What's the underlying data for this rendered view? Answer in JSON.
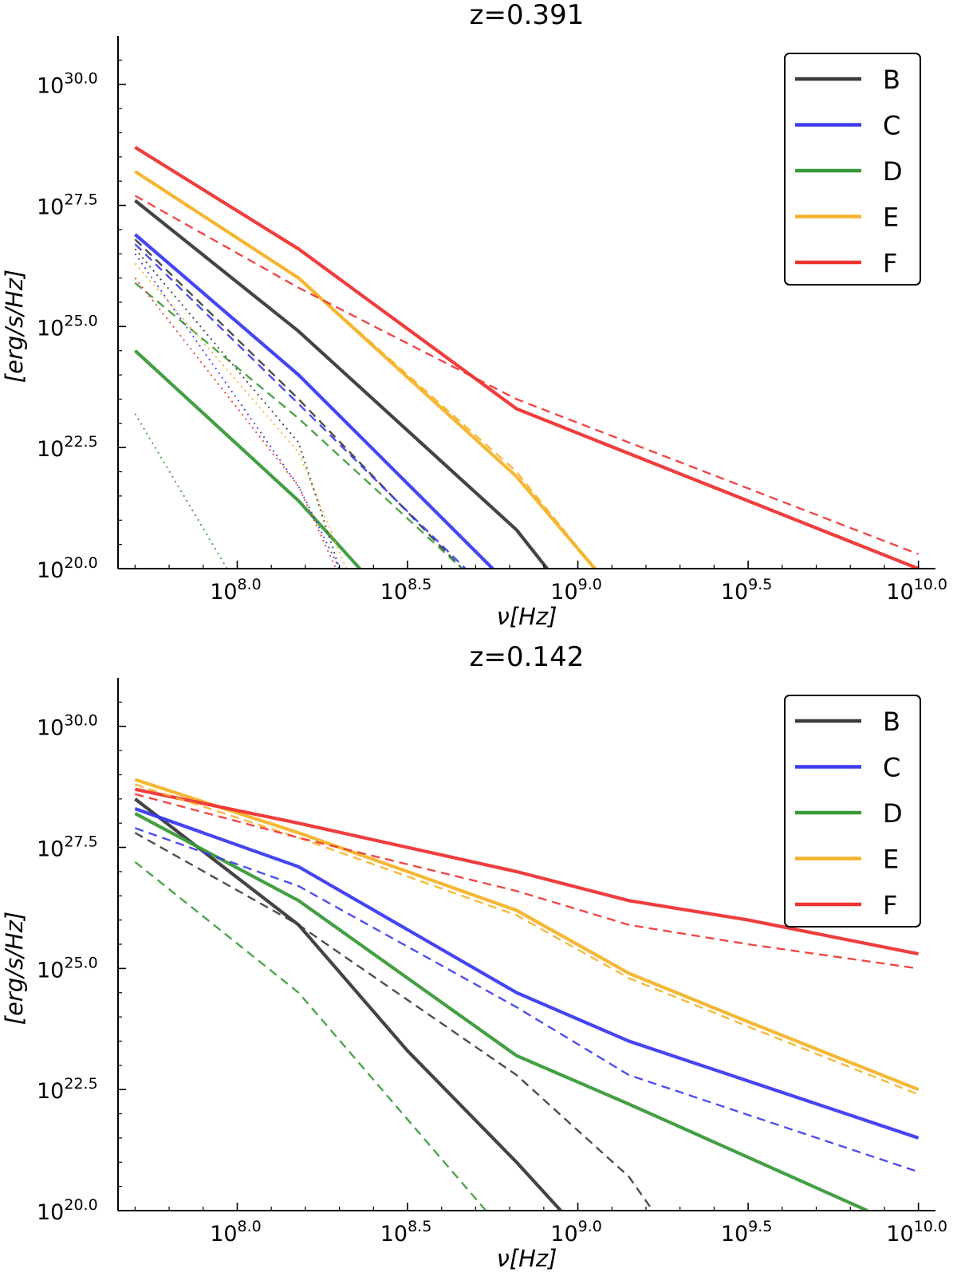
{
  "colors": {
    "B": "#3a3a3a",
    "C": "#3b3bf0",
    "D": "#3a9a3a",
    "E": "#f5b32a",
    "F": "#ee3333"
  },
  "tick_base": "10",
  "chart_data": [
    {
      "type": "line",
      "title": "z=0.391",
      "xlabel": "ν[Hz]",
      "ylabel": "[erg/s/Hz]",
      "xscale": "log",
      "yscale": "log",
      "xlim_log10": [
        7.65,
        10.05
      ],
      "ylim_log10": [
        20.0,
        31.0
      ],
      "xticks": [
        {
          "v": 8.0,
          "label": "8.0"
        },
        {
          "v": 8.5,
          "label": "8.5"
        },
        {
          "v": 9.0,
          "label": "9.0"
        },
        {
          "v": 9.5,
          "label": "9.5"
        },
        {
          "v": 10.0,
          "label": "10.0"
        }
      ],
      "yticks": [
        {
          "v": 20.0,
          "label": "20.0"
        },
        {
          "v": 22.5,
          "label": "22.5"
        },
        {
          "v": 25.0,
          "label": "25.0"
        },
        {
          "v": 27.5,
          "label": "27.5"
        },
        {
          "v": 30.0,
          "label": "30.0"
        }
      ],
      "legend": {
        "entries": [
          "B",
          "C",
          "D",
          "E",
          "F"
        ],
        "loc": "upper right"
      },
      "series": [
        {
          "name": "B",
          "style": "solid",
          "x": [
            7.7,
            8.18,
            8.82,
            8.91
          ],
          "y": [
            27.6,
            24.9,
            20.8,
            20.0
          ]
        },
        {
          "name": "C",
          "style": "solid",
          "x": [
            7.7,
            8.18,
            8.75
          ],
          "y": [
            26.9,
            24.0,
            20.0
          ]
        },
        {
          "name": "D",
          "style": "solid",
          "x": [
            7.7,
            8.18,
            8.36
          ],
          "y": [
            24.5,
            21.4,
            20.0
          ]
        },
        {
          "name": "E",
          "style": "solid",
          "x": [
            7.7,
            8.18,
            8.82,
            9.05
          ],
          "y": [
            28.2,
            26.0,
            21.9,
            20.0
          ]
        },
        {
          "name": "F",
          "style": "solid",
          "x": [
            7.7,
            8.18,
            8.82,
            10.0
          ],
          "y": [
            28.7,
            26.6,
            23.3,
            20.0
          ]
        },
        {
          "name": "B",
          "style": "dashed",
          "x": [
            7.7,
            8.18,
            8.66
          ],
          "y": [
            26.8,
            23.5,
            20.0
          ]
        },
        {
          "name": "C",
          "style": "dashed",
          "x": [
            7.7,
            8.18,
            8.67
          ],
          "y": [
            26.7,
            23.4,
            20.0
          ]
        },
        {
          "name": "D",
          "style": "dashed",
          "x": [
            7.7,
            8.18,
            8.66
          ],
          "y": [
            25.9,
            23.1,
            20.0
          ]
        },
        {
          "name": "E",
          "style": "dashed",
          "x": [
            7.7,
            8.18,
            8.82,
            9.05
          ],
          "y": [
            28.2,
            26.0,
            22.0,
            20.0
          ]
        },
        {
          "name": "F",
          "style": "dashed",
          "x": [
            7.7,
            8.18,
            8.82,
            10.0
          ],
          "y": [
            27.7,
            25.8,
            23.5,
            20.3
          ]
        },
        {
          "name": "B",
          "style": "dotted",
          "x": [
            7.7,
            8.18,
            8.3
          ],
          "y": [
            26.6,
            22.6,
            20.0
          ]
        },
        {
          "name": "C",
          "style": "dotted",
          "x": [
            7.7,
            8.18,
            8.3
          ],
          "y": [
            26.5,
            21.7,
            20.0
          ]
        },
        {
          "name": "D",
          "style": "dotted",
          "x": [
            7.7,
            7.97
          ],
          "y": [
            23.2,
            20.0
          ]
        },
        {
          "name": "E",
          "style": "dotted",
          "x": [
            7.7,
            8.18,
            8.32
          ],
          "y": [
            26.3,
            22.4,
            20.0
          ]
        },
        {
          "name": "F",
          "style": "dotted",
          "x": [
            7.7,
            8.18,
            8.29
          ],
          "y": [
            26.0,
            21.7,
            20.0
          ]
        }
      ]
    },
    {
      "type": "line",
      "title": "z=0.142",
      "xlabel": "ν[Hz]",
      "ylabel": "[erg/s/Hz]",
      "xscale": "log",
      "yscale": "log",
      "xlim_log10": [
        7.65,
        10.05
      ],
      "ylim_log10": [
        20.0,
        31.0
      ],
      "xticks": [
        {
          "v": 8.0,
          "label": "8.0"
        },
        {
          "v": 8.5,
          "label": "8.5"
        },
        {
          "v": 9.0,
          "label": "9.0"
        },
        {
          "v": 9.5,
          "label": "9.5"
        },
        {
          "v": 10.0,
          "label": "10.0"
        }
      ],
      "yticks": [
        {
          "v": 20.0,
          "label": "20.0"
        },
        {
          "v": 22.5,
          "label": "22.5"
        },
        {
          "v": 25.0,
          "label": "25.0"
        },
        {
          "v": 27.5,
          "label": "27.5"
        },
        {
          "v": 30.0,
          "label": "30.0"
        }
      ],
      "legend": {
        "entries": [
          "B",
          "C",
          "D",
          "E",
          "F"
        ],
        "loc": "upper right"
      },
      "series": [
        {
          "name": "B",
          "style": "solid",
          "x": [
            7.7,
            8.18,
            8.5,
            8.82,
            8.95
          ],
          "y": [
            28.5,
            25.9,
            23.3,
            21.0,
            20.0
          ]
        },
        {
          "name": "C",
          "style": "solid",
          "x": [
            7.7,
            8.18,
            8.82,
            9.15,
            10.0
          ],
          "y": [
            28.3,
            27.1,
            24.5,
            23.5,
            21.5
          ]
        },
        {
          "name": "D",
          "style": "solid",
          "x": [
            7.7,
            8.18,
            8.82,
            9.15,
            9.85
          ],
          "y": [
            28.2,
            26.4,
            23.2,
            22.2,
            20.0
          ]
        },
        {
          "name": "E",
          "style": "solid",
          "x": [
            7.7,
            8.18,
            8.82,
            9.15,
            9.5,
            10.0
          ],
          "y": [
            28.9,
            27.8,
            26.2,
            24.9,
            23.9,
            22.5
          ]
        },
        {
          "name": "F",
          "style": "solid",
          "x": [
            7.7,
            8.18,
            8.82,
            9.15,
            9.5,
            10.0
          ],
          "y": [
            28.7,
            28.0,
            27.0,
            26.4,
            26.0,
            25.3
          ]
        },
        {
          "name": "B",
          "style": "dashed",
          "x": [
            7.7,
            8.18,
            8.82,
            9.15,
            9.22
          ],
          "y": [
            27.8,
            25.9,
            22.8,
            20.7,
            20.0
          ]
        },
        {
          "name": "C",
          "style": "dashed",
          "x": [
            7.7,
            8.18,
            8.82,
            9.15,
            10.0
          ],
          "y": [
            27.9,
            26.7,
            24.2,
            22.8,
            20.8
          ]
        },
        {
          "name": "D",
          "style": "dashed",
          "x": [
            7.7,
            8.18,
            8.73
          ],
          "y": [
            27.2,
            24.5,
            20.0
          ]
        },
        {
          "name": "E",
          "style": "dashed",
          "x": [
            7.7,
            8.18,
            8.82,
            9.15,
            9.5,
            10.0
          ],
          "y": [
            28.8,
            27.7,
            26.1,
            24.8,
            23.8,
            22.4
          ]
        },
        {
          "name": "F",
          "style": "dashed",
          "x": [
            7.7,
            8.18,
            8.82,
            9.15,
            9.5,
            10.0
          ],
          "y": [
            28.6,
            27.7,
            26.6,
            25.9,
            25.5,
            25.0
          ]
        }
      ]
    }
  ]
}
